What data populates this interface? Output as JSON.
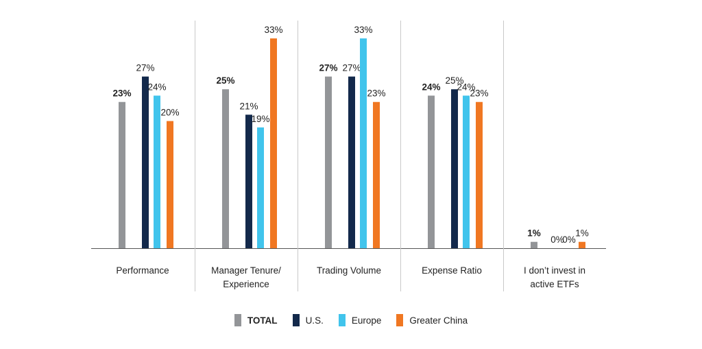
{
  "chart_data": {
    "type": "bar",
    "categories": [
      [
        "Performance"
      ],
      [
        "Manager Tenure/",
        "Experience"
      ],
      [
        "Trading Volume"
      ],
      [
        "Expense Ratio"
      ],
      [
        "I don’t invest in",
        "active ETFs"
      ]
    ],
    "series": [
      {
        "name": "TOTAL",
        "color": "#939598",
        "bold": true,
        "values": [
          23,
          25,
          27,
          24,
          1
        ]
      },
      {
        "name": "U.S.",
        "color": "#13294b",
        "bold": false,
        "values": [
          27,
          21,
          27,
          25,
          0
        ]
      },
      {
        "name": "Europe",
        "color": "#41c4ec",
        "bold": false,
        "values": [
          24,
          19,
          33,
          24,
          0
        ]
      },
      {
        "name": "Greater China",
        "color": "#f07722",
        "bold": false,
        "values": [
          20,
          33,
          23,
          23,
          1
        ]
      }
    ],
    "value_suffix": "%",
    "ylim": [
      0,
      33
    ],
    "grid": false,
    "legend_position": "bottom-center"
  }
}
